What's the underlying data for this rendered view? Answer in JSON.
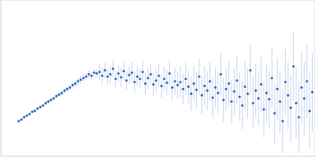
{
  "chart_data": {
    "type": "scatter",
    "color": "#3a68c0",
    "marker": "circle",
    "grid": true,
    "tick_labels": false,
    "xlim": [
      0,
      0.35
    ],
    "xticks": [
      0.1
    ],
    "ylim": [
      0,
      2
    ],
    "yticks": [
      1
    ],
    "x": [
      0.02,
      0.023,
      0.026,
      0.029,
      0.032,
      0.035,
      0.038,
      0.041,
      0.044,
      0.047,
      0.05,
      0.053,
      0.056,
      0.059,
      0.062,
      0.065,
      0.068,
      0.071,
      0.074,
      0.077,
      0.08,
      0.083,
      0.086,
      0.089,
      0.092,
      0.095,
      0.098,
      0.101,
      0.104,
      0.107,
      0.11,
      0.113,
      0.116,
      0.119,
      0.122,
      0.125,
      0.128,
      0.131,
      0.134,
      0.137,
      0.14,
      0.143,
      0.146,
      0.149,
      0.152,
      0.155,
      0.158,
      0.161,
      0.164,
      0.167,
      0.17,
      0.173,
      0.176,
      0.179,
      0.182,
      0.185,
      0.188,
      0.191,
      0.194,
      0.197,
      0.2,
      0.203,
      0.206,
      0.209,
      0.212,
      0.215,
      0.218,
      0.221,
      0.224,
      0.227,
      0.23,
      0.233,
      0.236,
      0.239,
      0.242,
      0.245,
      0.248,
      0.251,
      0.254,
      0.257,
      0.26,
      0.263,
      0.266,
      0.269,
      0.272,
      0.275,
      0.278,
      0.281,
      0.284,
      0.287,
      0.29,
      0.293,
      0.296,
      0.299,
      0.302,
      0.305,
      0.308,
      0.311,
      0.314,
      0.317,
      0.32,
      0.323,
      0.326,
      0.329,
      0.332,
      0.335,
      0.338,
      0.341,
      0.344,
      0.347
    ],
    "values": [
      0.45,
      0.47,
      0.5,
      0.52,
      0.54,
      0.57,
      0.58,
      0.61,
      0.63,
      0.65,
      0.68,
      0.7,
      0.72,
      0.74,
      0.77,
      0.79,
      0.81,
      0.84,
      0.86,
      0.88,
      0.91,
      0.93,
      0.96,
      0.98,
      1.0,
      1.02,
      1.05,
      1.03,
      1.07,
      1.06,
      1.08,
      1.03,
      1.1,
      1.02,
      1.05,
      1.12,
      0.99,
      1.06,
      1.01,
      1.09,
      0.97,
      1.04,
      1.07,
      0.95,
      1.02,
      0.99,
      1.08,
      0.93,
      1.0,
      1.05,
      0.92,
      0.97,
      1.03,
      0.9,
      0.99,
      0.94,
      1.06,
      0.88,
      0.96,
      0.91,
      0.95,
      0.86,
      0.99,
      0.89,
      0.8,
      0.93,
      0.85,
      1.02,
      0.78,
      0.9,
      0.84,
      0.96,
      0.75,
      0.88,
      0.81,
      1.05,
      0.72,
      0.86,
      0.93,
      0.7,
      0.83,
      0.97,
      0.76,
      0.65,
      0.89,
      0.8,
      1.1,
      0.68,
      0.84,
      0.74,
      0.92,
      0.6,
      0.81,
      0.73,
      1.0,
      0.55,
      0.86,
      0.7,
      0.45,
      0.95,
      0.78,
      0.62,
      1.15,
      0.68,
      0.5,
      0.88,
      0.74,
      0.96,
      0.58,
      0.82
    ],
    "error": [
      0.02,
      0.02,
      0.02,
      0.02,
      0.02,
      0.02,
      0.02,
      0.02,
      0.02,
      0.02,
      0.03,
      0.03,
      0.03,
      0.03,
      0.03,
      0.03,
      0.03,
      0.03,
      0.03,
      0.03,
      0.05,
      0.05,
      0.05,
      0.05,
      0.05,
      0.05,
      0.05,
      0.05,
      0.05,
      0.05,
      0.1,
      0.1,
      0.1,
      0.1,
      0.11,
      0.11,
      0.11,
      0.11,
      0.12,
      0.12,
      0.12,
      0.12,
      0.13,
      0.13,
      0.13,
      0.13,
      0.14,
      0.14,
      0.14,
      0.14,
      0.15,
      0.15,
      0.15,
      0.15,
      0.16,
      0.16,
      0.16,
      0.17,
      0.17,
      0.17,
      0.2,
      0.2,
      0.21,
      0.21,
      0.22,
      0.22,
      0.23,
      0.23,
      0.24,
      0.24,
      0.25,
      0.25,
      0.26,
      0.26,
      0.27,
      0.27,
      0.28,
      0.28,
      0.29,
      0.29,
      0.3,
      0.3,
      0.31,
      0.31,
      0.32,
      0.32,
      0.33,
      0.33,
      0.34,
      0.35,
      0.35,
      0.36,
      0.37,
      0.37,
      0.38,
      0.39,
      0.4,
      0.4,
      0.41,
      0.42,
      0.43,
      0.43,
      0.44,
      0.45,
      0.46,
      0.46,
      0.47,
      0.48,
      0.49,
      0.5
    ]
  }
}
